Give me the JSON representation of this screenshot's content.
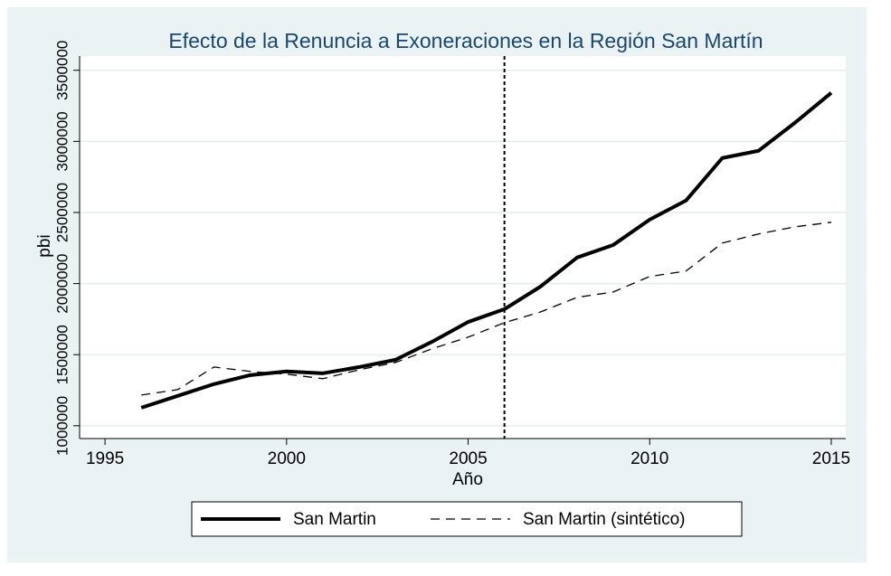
{
  "chart_data": {
    "type": "line",
    "title": "Efecto de la Renuncia a Exoneraciones en la Región San Martín",
    "x_label": "Año",
    "y_label": "pbi",
    "x": [
      1996,
      1997,
      1998,
      1999,
      2000,
      2001,
      2002,
      2003,
      2004,
      2005,
      2006,
      2007,
      2008,
      2009,
      2010,
      2011,
      2012,
      2013,
      2014,
      2015
    ],
    "series": [
      {
        "name": "San Martin",
        "color": "#000000",
        "dash": "solid",
        "values": [
          1127000,
          1210000,
          1293000,
          1356000,
          1382000,
          1369000,
          1413000,
          1464000,
          1590000,
          1730000,
          1820000,
          1980000,
          2183000,
          2272000,
          2450000,
          2584000,
          2883000,
          2934000,
          3131000,
          3341000
        ]
      },
      {
        "name": "San Martin (sintético)",
        "color": "#000000",
        "dash": "dashed",
        "values": [
          1216000,
          1254000,
          1413000,
          1382000,
          1363000,
          1331000,
          1394000,
          1445000,
          1541000,
          1623000,
          1725000,
          1801000,
          1903000,
          1941000,
          2050000,
          2088000,
          2285000,
          2349000,
          2399000,
          2431000
        ]
      }
    ],
    "xlim": [
      1994.3,
      2015.4
    ],
    "xticks": [
      1995,
      2000,
      2005,
      2010,
      2015
    ],
    "ylim": [
      910000,
      3600000
    ],
    "yticks": [
      1000000,
      1500000,
      2000000,
      2500000,
      3000000,
      3500000
    ],
    "grid": true,
    "xline": 2006,
    "legend": "bottom"
  }
}
